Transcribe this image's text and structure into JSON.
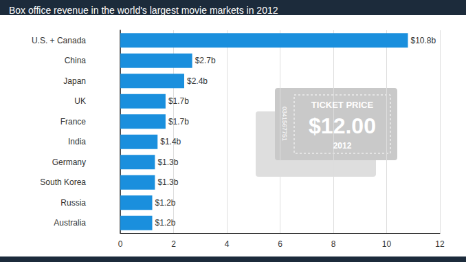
{
  "chart_data": {
    "type": "bar",
    "orientation": "horizontal",
    "title": "Box office revenue in the world's largest movie markets in 2012",
    "categories": [
      "U.S. + Canada",
      "China",
      "Japan",
      "UK",
      "France",
      "India",
      "Germany",
      "South Korea",
      "Russia",
      "Australia"
    ],
    "values": [
      10.8,
      2.7,
      2.4,
      1.7,
      1.7,
      1.4,
      1.3,
      1.3,
      1.2,
      1.2
    ],
    "value_labels": [
      "$10.8b",
      "$2.7b",
      "$2.4b",
      "$1.7b",
      "$1.7b",
      "$1.4b",
      "$1.3b",
      "$1.3b",
      "$1.2b",
      "$1.2b"
    ],
    "data_labels": true,
    "color": "#1a8fdd",
    "xlim": [
      0,
      12
    ],
    "xticks": [
      0,
      2,
      4,
      6,
      8,
      10,
      12
    ],
    "grid": true,
    "annotations": [
      "TICKET PRICE",
      "$12.00",
      "2012",
      "0341567751"
    ]
  }
}
